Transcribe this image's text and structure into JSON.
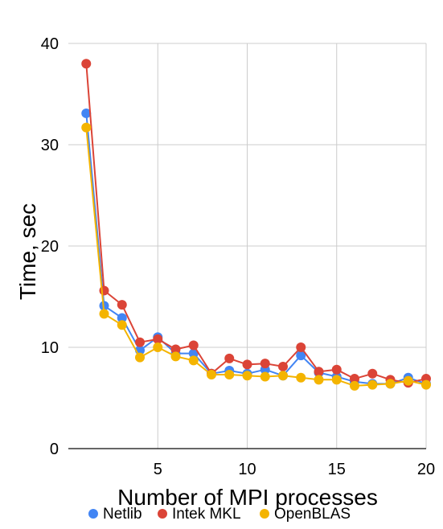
{
  "chart_data": {
    "type": "line",
    "title": "",
    "xlabel": "Number of MPI processes",
    "ylabel": "Time, sec",
    "xlim": [
      1,
      20
    ],
    "ylim": [
      0,
      40
    ],
    "xticks": [
      5,
      10,
      15,
      20
    ],
    "yticks": [
      0,
      10,
      20,
      30,
      40
    ],
    "grid": true,
    "legend_position": "bottom",
    "x": [
      1,
      2,
      3,
      4,
      5,
      6,
      7,
      8,
      9,
      10,
      11,
      12,
      13,
      14,
      15,
      16,
      17,
      18,
      19,
      20
    ],
    "series": [
      {
        "name": "Netlib",
        "color": "#4285F4",
        "values": [
          33.1,
          14.1,
          12.9,
          9.7,
          11.0,
          9.4,
          9.4,
          7.4,
          7.7,
          7.4,
          7.8,
          7.2,
          9.2,
          7.5,
          7.1,
          6.6,
          6.4,
          6.4,
          7.0,
          6.4
        ]
      },
      {
        "name": "Intek MKL",
        "color": "#DB4437",
        "values": [
          38.0,
          15.6,
          14.2,
          10.5,
          10.8,
          9.8,
          10.2,
          7.4,
          8.9,
          8.3,
          8.4,
          8.1,
          10.0,
          7.6,
          7.8,
          6.9,
          7.4,
          6.8,
          6.5,
          6.9
        ]
      },
      {
        "name": "OpenBLAS",
        "color": "#F4B400",
        "values": [
          31.7,
          13.3,
          12.2,
          9.0,
          10.0,
          9.1,
          8.7,
          7.3,
          7.3,
          7.2,
          7.1,
          7.2,
          7.0,
          6.8,
          6.8,
          6.2,
          6.3,
          6.4,
          6.7,
          6.3
        ]
      }
    ]
  }
}
